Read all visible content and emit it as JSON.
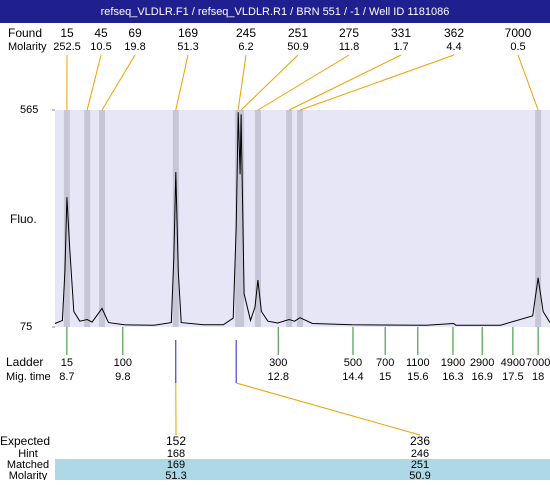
{
  "chart_data": {
    "type": "line",
    "title": "refseq_VLDLR.F1 / refseq_VLDLR.R1 / BRN 551 / -1 / Well ID 1181086",
    "ylabel": "Fluo.",
    "ylim": [
      75,
      565
    ],
    "yticks": [
      75,
      565
    ],
    "xlim": [
      0,
      100
    ],
    "trace": {
      "x": [
        0,
        1.5,
        2.0,
        2.4,
        3.0,
        3.8,
        5.0,
        6.5,
        7.5,
        9.5,
        10.8,
        14,
        20,
        23.5,
        24.0,
        24.4,
        24.9,
        25.5,
        30,
        34,
        36,
        36.6,
        37.0,
        37.4,
        37.6,
        38.2,
        39.5,
        40.4,
        41.0,
        41.7,
        43,
        45,
        47.3,
        48.4,
        49.5,
        52,
        60,
        75,
        80.5,
        81,
        90,
        96.5,
        97.6,
        98.6,
        100
      ],
      "values": [
        83,
        90,
        200,
        368,
        250,
        110,
        88,
        92,
        86,
        117,
        85,
        80,
        79,
        85,
        230,
        425,
        200,
        85,
        80,
        80,
        95,
        300,
        560,
        420,
        555,
        150,
        90,
        120,
        181,
        110,
        88,
        84,
        92,
        88,
        96,
        83,
        80,
        79,
        83,
        79,
        79,
        100,
        186,
        110,
        85
      ],
      "color": "#000000"
    },
    "found": {
      "label": "Found",
      "molarity_label": "Molarity",
      "sizes": [
        "15",
        "45",
        "69",
        "169",
        "245",
        "251",
        "275",
        "331",
        "362",
        "7000"
      ],
      "molarity": [
        "252.5",
        "10.5",
        "19.8",
        "51.3",
        "6.2",
        "50.9",
        "11.8",
        "1.7",
        "4.4",
        "0.5"
      ],
      "x": [
        2.4,
        6.5,
        9.5,
        24.4,
        37.0,
        37.6,
        41.0,
        47.3,
        49.5,
        97.6
      ]
    },
    "ladder": {
      "label": "Ladder",
      "time_label": "Mig. time",
      "sizes": [
        "15",
        "100",
        "300",
        "500",
        "700",
        "1100",
        "1900",
        "2900",
        "4900",
        "7000"
      ],
      "times": [
        "8.7",
        "9.8",
        "12.8",
        "14.4",
        "15",
        "15.6",
        "16.3",
        "16.9",
        "17.5",
        "18"
      ],
      "x": [
        2.4,
        13.7,
        45.1,
        60.2,
        66.7,
        73.3,
        80.4,
        86.3,
        92.5,
        97.6
      ]
    },
    "expected": {
      "label": "Expected",
      "row_labels": [
        "Hint",
        "Matched",
        "Molarity"
      ],
      "items": [
        {
          "size": "152",
          "x": 24.4,
          "hint": "168",
          "matched": "169",
          "molarity": "51.3"
        },
        {
          "size": "236",
          "x": 36.6,
          "hint": "246",
          "matched": "251",
          "molarity": "50.9"
        }
      ]
    }
  }
}
